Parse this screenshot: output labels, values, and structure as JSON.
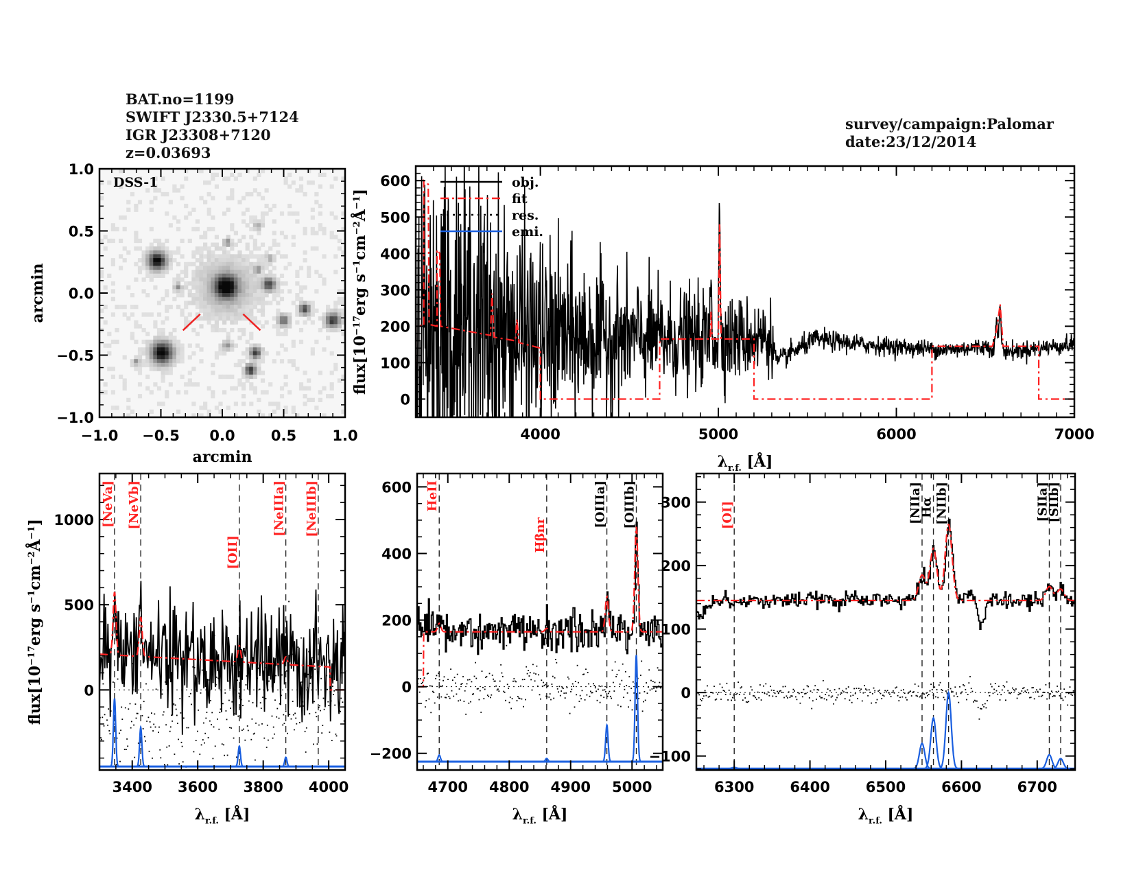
{
  "header": {
    "left_lines": [
      "BAT.no=1199",
      "SWIFT J2330.5+7124",
      "IGR J23308+7120",
      "z=0.03693"
    ],
    "right_lines": [
      "survey/campaign:Palomar",
      "date:23/12/2014"
    ]
  },
  "colors": {
    "object": "#000000",
    "fit": "#ff2222",
    "residual": "#000000",
    "emission": "#1a5fe0",
    "marker": "#ee2222"
  },
  "chart_data": [
    {
      "id": "image",
      "type": "heatmap",
      "title": "DSS-1",
      "xlabel": "arcmin",
      "ylabel": "arcmin",
      "xlim": [
        -1.0,
        1.0
      ],
      "ylim": [
        -1.0,
        1.0
      ],
      "xticks": [
        "-1.0",
        "-0.5",
        "0.0",
        "0.5",
        "1.0"
      ],
      "yticks": [
        "-1.0",
        "-0.5",
        "0.0",
        "0.5",
        "1.0"
      ],
      "sources": [
        {
          "x": 0.03,
          "y": 0.05,
          "r": 0.06,
          "strength": 1.0,
          "halo": true
        },
        {
          "x": -0.53,
          "y": 0.26,
          "r": 0.05,
          "strength": 0.95
        },
        {
          "x": -0.49,
          "y": -0.48,
          "r": 0.06,
          "strength": 1.0
        },
        {
          "x": 0.38,
          "y": 0.07,
          "r": 0.035,
          "strength": 0.7
        },
        {
          "x": 0.67,
          "y": -0.13,
          "r": 0.03,
          "strength": 0.7
        },
        {
          "x": 0.5,
          "y": -0.22,
          "r": 0.03,
          "strength": 0.6
        },
        {
          "x": 0.9,
          "y": -0.22,
          "r": 0.04,
          "strength": 0.75
        },
        {
          "x": 0.27,
          "y": -0.48,
          "r": 0.03,
          "strength": 0.75
        },
        {
          "x": 0.23,
          "y": -0.62,
          "r": 0.03,
          "strength": 0.8
        },
        {
          "x": 0.04,
          "y": -0.42,
          "r": 0.025,
          "strength": 0.35
        },
        {
          "x": 0.04,
          "y": 0.41,
          "r": 0.02,
          "strength": 0.4
        },
        {
          "x": 0.29,
          "y": 0.19,
          "r": 0.02,
          "strength": 0.4
        },
        {
          "x": 0.29,
          "y": 0.54,
          "r": 0.02,
          "strength": 0.3
        },
        {
          "x": 0.39,
          "y": 0.28,
          "r": 0.02,
          "strength": 0.3
        },
        {
          "x": -0.36,
          "y": 0.05,
          "r": 0.02,
          "strength": 0.35
        },
        {
          "x": -0.7,
          "y": -0.55,
          "r": 0.02,
          "strength": 0.35
        }
      ],
      "target_marker": {
        "x": 0.0,
        "y": 0.0,
        "style": "two red ticks below-left and below-right"
      }
    },
    {
      "id": "full-spectrum",
      "type": "line",
      "xlabel": "λr.f. [Å]",
      "ylabel": "flux[10^-17 erg s^-1 cm^-2 Å^-1]",
      "xlim": [
        3300,
        7000
      ],
      "ylim": [
        -50,
        640
      ],
      "xticks": [
        4000,
        5000,
        6000,
        7000
      ],
      "yticks": [
        0,
        100,
        200,
        300,
        400,
        500,
        600
      ],
      "legend": {
        "position": "top-left",
        "entries": [
          {
            "label": "obj.",
            "style": "solid",
            "color": "#000000"
          },
          {
            "label": "fit",
            "style": "dash-dot",
            "color": "#ff2222"
          },
          {
            "label": "res.",
            "style": "dotted",
            "color": "#000000"
          },
          {
            "label": "emi.",
            "style": "solid",
            "color": "#1a5fe0"
          }
        ]
      },
      "object_continuum": [
        [
          3300,
          210
        ],
        [
          3500,
          200
        ],
        [
          3800,
          180
        ],
        [
          4000,
          172
        ],
        [
          4300,
          170
        ],
        [
          4700,
          165
        ],
        [
          5000,
          165
        ],
        [
          5300,
          170
        ],
        [
          5330,
          100
        ],
        [
          5400,
          125
        ],
        [
          5550,
          165
        ],
        [
          5800,
          150
        ],
        [
          6100,
          140
        ],
        [
          6300,
          135
        ],
        [
          6500,
          145
        ],
        [
          6650,
          130
        ],
        [
          6800,
          140
        ],
        [
          7000,
          150
        ]
      ],
      "object_noise": [
        [
          3300,
          260
        ],
        [
          3600,
          220
        ],
        [
          4000,
          130
        ],
        [
          4500,
          80
        ],
        [
          5000,
          60
        ],
        [
          5300,
          50
        ],
        [
          5310,
          15
        ],
        [
          6000,
          12
        ],
        [
          7000,
          12
        ]
      ],
      "object_lines": [
        {
          "center": 4959,
          "amp": 160,
          "sigma": 4
        },
        {
          "center": 5007,
          "amp": 330,
          "sigma": 4
        },
        {
          "center": 6563,
          "amp": 70,
          "sigma": 6
        },
        {
          "center": 6583,
          "amp": 120,
          "sigma": 5
        }
      ],
      "fit_segments": [
        {
          "points": [
            [
              3300,
              90
            ],
            [
              3300,
              205
            ],
            [
              3345,
              200
            ],
            [
              3345,
              600
            ],
            [
              3370,
              590
            ],
            [
              3375,
              205
            ],
            [
              3420,
              200
            ],
            [
              3420,
              410
            ],
            [
              3435,
              400
            ],
            [
              3440,
              200
            ],
            [
              3720,
              175
            ],
            [
              3728,
              290
            ],
            [
              3740,
              170
            ],
            [
              3860,
              160
            ],
            [
              3868,
              220
            ],
            [
              3880,
              155
            ],
            [
              4000,
              140
            ],
            [
              4000,
              0
            ],
            [
              4670,
              0
            ],
            [
              4670,
              165
            ],
            [
              4955,
              165
            ],
            [
              4959,
              240
            ],
            [
              4965,
              165
            ],
            [
              5000,
              165
            ],
            [
              5007,
              480
            ],
            [
              5015,
              165
            ],
            [
              5200,
              165
            ],
            [
              5200,
              0
            ],
            [
              6200,
              0
            ],
            [
              6200,
              145
            ],
            [
              6540,
              145
            ],
            [
              6563,
              190
            ],
            [
              6583,
              260
            ],
            [
              6600,
              145
            ],
            [
              6800,
              145
            ],
            [
              6800,
              0
            ],
            [
              7000,
              0
            ]
          ]
        }
      ]
    },
    {
      "id": "zoom-blue",
      "type": "line",
      "xlabel": "λr.f. [Å]",
      "ylabel": "flux[10^-17 erg s^-1 cm^-2 Å^-1]",
      "xlim": [
        3300,
        4050
      ],
      "ylim": [
        -470,
        1270
      ],
      "xticks": [
        3400,
        3600,
        3800,
        4000
      ],
      "yticks": [
        0,
        500,
        1000
      ],
      "continuum_fit": [
        [
          3300,
          210
        ],
        [
          4000,
          135
        ]
      ],
      "fit_cutoff": {
        "x": 4005,
        "to": 0
      },
      "object_noise": 160,
      "residual_spread": 170,
      "emission_baseline": -450,
      "lines": [
        {
          "label": "[NeVa]",
          "wave": 3346,
          "color": "#ff2222",
          "fit_amp": 370,
          "emi_peak": -50,
          "sigma": 3.5
        },
        {
          "label": "[NeVb]",
          "wave": 3426,
          "color": "#ff2222",
          "fit_amp": 230,
          "emi_peak": -220,
          "sigma": 3.5
        },
        {
          "label": "[OII]",
          "wave": 3727,
          "color": "#ff2222",
          "fit_amp": 95,
          "emi_peak": -330,
          "sigma": 3.5
        },
        {
          "label": "[NeIIIa]",
          "wave": 3869,
          "color": "#ff2222",
          "fit_amp": 45,
          "emi_peak": -395,
          "sigma": 3.5
        },
        {
          "label": "[NeIIIb]",
          "wave": 3968,
          "color": "#ff2222",
          "fit_amp": 0,
          "emi_peak": -450,
          "sigma": 3.5
        }
      ]
    },
    {
      "id": "zoom-hbeta",
      "type": "line",
      "xlabel": "λr.f. [Å]",
      "ylabel": "",
      "xlim": [
        4650,
        5050
      ],
      "ylim": [
        -250,
        640
      ],
      "xticks": [
        4700,
        4800,
        4900,
        5000
      ],
      "yticks": [
        -200,
        0,
        200,
        400,
        600
      ],
      "continuum_fit": [
        [
          4660,
          165
        ],
        [
          5050,
          165
        ]
      ],
      "fit_cutoff": {
        "x": 4660,
        "to": 0
      },
      "object_noise": 30,
      "residual_spread": 35,
      "emission_baseline": -225,
      "lines": [
        {
          "label": "HeII",
          "wave": 4686,
          "color": "#ff2222",
          "fit_amp": 25,
          "emi_peak": -205,
          "sigma": 2
        },
        {
          "label": "Hβnr",
          "wave": 4861,
          "color": "#ff2222",
          "fit_amp": 10,
          "emi_peak": -215,
          "sigma": 2
        },
        {
          "label": "[OIIIa]",
          "wave": 4959,
          "color": "#000000",
          "fit_amp": 105,
          "emi_peak": -115,
          "sigma": 2
        },
        {
          "label": "[OIIIb]",
          "wave": 5007,
          "color": "#000000",
          "fit_amp": 315,
          "emi_peak": 95,
          "sigma": 2
        }
      ]
    },
    {
      "id": "zoom-halpha",
      "type": "line",
      "xlabel": "λr.f. [Å]",
      "ylabel": "",
      "xlim": [
        6250,
        6750
      ],
      "ylim": [
        -122,
        345
      ],
      "xticks": [
        6300,
        6400,
        6500,
        6600,
        6700
      ],
      "yticks": [
        -100,
        0,
        100,
        200,
        300
      ],
      "continuum_fit": [
        [
          6250,
          145
        ],
        [
          6750,
          145
        ]
      ],
      "object_noise": 6,
      "residual_spread": 8,
      "emission_baseline": -120,
      "lines": [
        {
          "label": "[OI]",
          "wave": 6300,
          "color": "#ff2222",
          "fit_amp": 0,
          "emi_peak": -118,
          "sigma": 3
        },
        {
          "label": "[NIIa]",
          "wave": 6548,
          "color": "#000000",
          "fit_amp": 40,
          "emi_peak": -80,
          "sigma": 3.5
        },
        {
          "label": "Hα",
          "wave": 6563,
          "color": "#000000",
          "fit_amp": 82,
          "emi_peak": -40,
          "sigma": 3.5
        },
        {
          "label": "[NIIb]",
          "wave": 6583,
          "color": "#000000",
          "fit_amp": 120,
          "emi_peak": 0,
          "sigma": 3.5
        },
        {
          "label": "[SIIa]",
          "wave": 6716,
          "color": "#000000",
          "fit_amp": 22,
          "emi_peak": -98,
          "sigma": 3.5
        },
        {
          "label": "[SIIb]",
          "wave": 6731,
          "color": "#000000",
          "fit_amp": 18,
          "emi_peak": -104,
          "sigma": 3.5
        }
      ]
    }
  ]
}
